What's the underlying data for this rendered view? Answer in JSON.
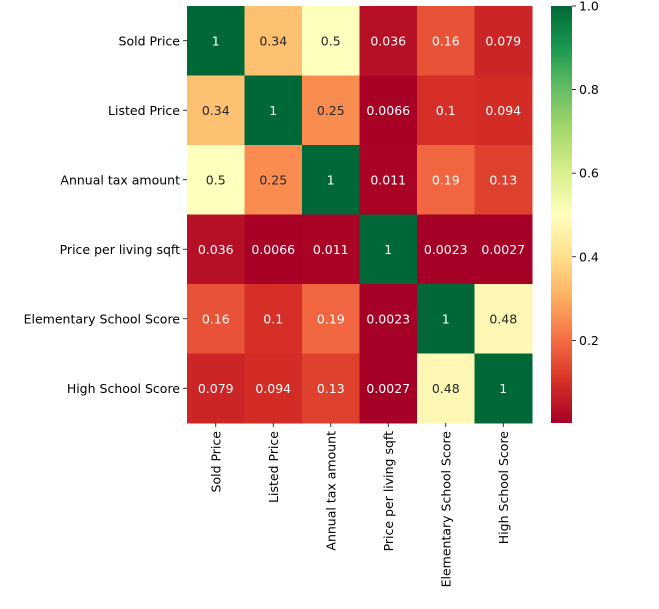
{
  "chart_data": {
    "type": "heatmap",
    "title": "",
    "xlabel": "",
    "ylabel": "",
    "row_labels": [
      "Sold Price",
      "Listed Price",
      "Annual tax amount",
      "Price per living sqft",
      "Elementary School Score",
      "High School Score"
    ],
    "col_labels": [
      "Sold Price",
      "Listed Price",
      "Annual tax amount",
      "Price per living sqft",
      "Elementary School Score",
      "High School Score"
    ],
    "values": [
      [
        1,
        0.34,
        0.5,
        0.036,
        0.16,
        0.079
      ],
      [
        0.34,
        1,
        0.25,
        0.0066,
        0.1,
        0.094
      ],
      [
        0.5,
        0.25,
        1,
        0.011,
        0.19,
        0.13
      ],
      [
        0.036,
        0.0066,
        0.011,
        1,
        0.0023,
        0.0027
      ],
      [
        0.16,
        0.1,
        0.19,
        0.0023,
        1,
        0.48
      ],
      [
        0.079,
        0.094,
        0.13,
        0.0027,
        0.48,
        1
      ]
    ],
    "value_labels": [
      [
        "1",
        "0.34",
        "0.5",
        "0.036",
        "0.16",
        "0.079"
      ],
      [
        "0.34",
        "1",
        "0.25",
        "0.0066",
        "0.1",
        "0.094"
      ],
      [
        "0.5",
        "0.25",
        "1",
        "0.011",
        "0.19",
        "0.13"
      ],
      [
        "0.036",
        "0.0066",
        "0.011",
        "1",
        "0.0023",
        "0.0027"
      ],
      [
        "0.16",
        "0.1",
        "0.19",
        "0.0023",
        "1",
        "0.48"
      ],
      [
        "0.079",
        "0.094",
        "0.13",
        "0.0027",
        "0.48",
        "1"
      ]
    ],
    "colormap": "RdYlGn",
    "colorbar": {
      "range": [
        0.0023,
        1.0
      ],
      "ticks": [
        0.2,
        0.4,
        0.6,
        0.8,
        1.0
      ],
      "tick_labels": [
        "0.2",
        "0.4",
        "0.6",
        "0.8",
        "1.0"
      ]
    }
  }
}
